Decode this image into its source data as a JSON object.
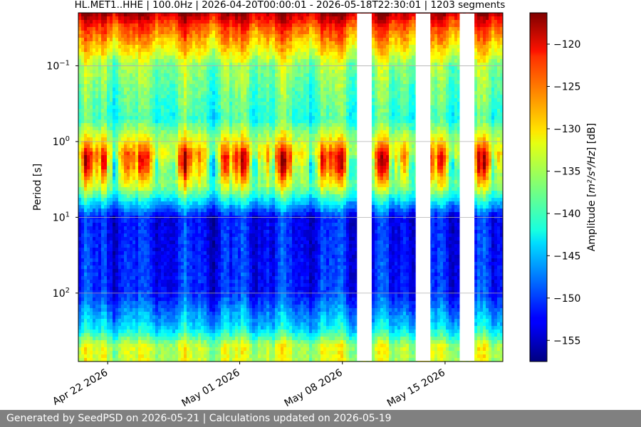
{
  "chart_data": {
    "type": "heatmap",
    "title": "HL.MET1..HHE | 100.0Hz | 2026-04-20T00:00:01 - 2026-05-18T22:30:01 | 1203 segments",
    "xlabel": "",
    "ylabel": "Period [s]",
    "x_axis": {
      "type": "date",
      "range": [
        "2026-04-20T00:00:01",
        "2026-05-18T22:30:01"
      ],
      "ticks": [
        {
          "date": "2026-04-22",
          "label": "Apr 22 2026"
        },
        {
          "date": "2026-05-01",
          "label": "May 01 2026"
        },
        {
          "date": "2026-05-08",
          "label": "May 08 2026"
        },
        {
          "date": "2026-05-15",
          "label": "May 15 2026"
        }
      ]
    },
    "y_axis": {
      "scale": "log",
      "inverted": true,
      "range": [
        0.02,
        800
      ],
      "ticks": [
        {
          "value": 0.1,
          "base": "10",
          "exp": "−1"
        },
        {
          "value": 1,
          "base": "10",
          "exp": "0"
        },
        {
          "value": 10,
          "base": "10",
          "exp": "1"
        },
        {
          "value": 100,
          "base": "10",
          "exp": "2"
        }
      ]
    },
    "grid": true,
    "colorbar": {
      "label_main": "Amplitude [",
      "label_unit": "m²/s⁴/Hz",
      "label_end": "] [dB]",
      "range": [
        -157.5,
        -116.3
      ],
      "ticks": [
        -120,
        -125,
        -130,
        -135,
        -140,
        -145,
        -150,
        -155
      ],
      "tick_labels": [
        "−120",
        "−125",
        "−130",
        "−135",
        "−140",
        "−145",
        "−150",
        "−155"
      ],
      "colormap": "jet"
    },
    "data_gaps": [
      {
        "start": "2026-05-09T00:00:00",
        "end": "2026-05-10T00:00:00"
      },
      {
        "start": "2026-05-13T00:00:00",
        "end": "2026-05-14T00:00:00"
      },
      {
        "start": "2026-05-16T00:00:00",
        "end": "2026-05-17T00:00:00"
      }
    ],
    "amplitude_profile_db": [
      {
        "period": 0.02,
        "db": -118
      },
      {
        "period": 0.03,
        "db": -124
      },
      {
        "period": 0.1,
        "db": -136
      },
      {
        "period": 0.5,
        "db": -140
      },
      {
        "period": 1.5,
        "db": -128
      },
      {
        "period": 4,
        "db": -135
      },
      {
        "period": 10,
        "db": -152
      },
      {
        "period": 100,
        "db": -151
      },
      {
        "period": 300,
        "db": -143
      },
      {
        "period": 500,
        "db": -134
      }
    ]
  },
  "footer": {
    "text": "Generated by SeedPSD on 2026-05-21 | Calculations updated on 2026-05-19"
  }
}
